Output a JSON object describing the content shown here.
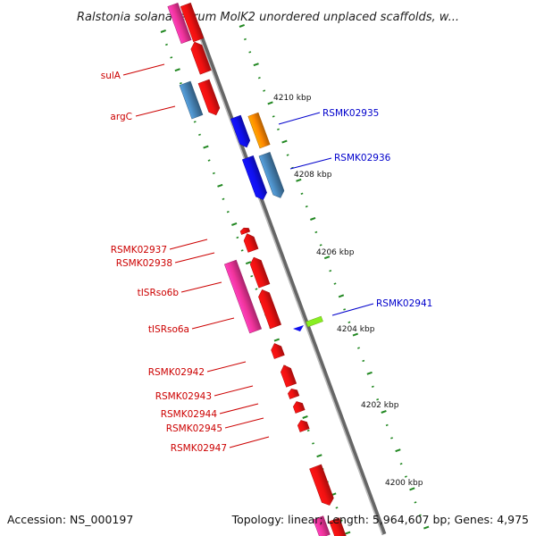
{
  "header": {
    "title": "Ralstonia solanacearum MolK2 unordered unplaced scaffolds, w..."
  },
  "footer": {
    "accession": "Accession: NS_000197",
    "summary": "Topology: linear; Length: 5,964,607 bp; Genes: 4,975"
  },
  "scale_labels": [
    "4210 kbp",
    "4208 kbp",
    "4206 kbp",
    "4204 kbp",
    "4202 kbp",
    "4200 kbp"
  ],
  "gene_labels_left": [
    "sulA",
    "argC",
    "RSMK02937",
    "RSMK02938",
    "tISRso6b",
    "tISRso6a",
    "RSMK02942",
    "RSMK02943",
    "RSMK02944",
    "RSMK02945",
    "RSMK02947"
  ],
  "gene_labels_right": [
    "RSMK02935",
    "RSMK02936",
    "RSMK02941"
  ],
  "colors": {
    "red": "#ee1111",
    "pink": "#ee3399",
    "steelblue": "#4682b4",
    "blue": "#1010ee",
    "orange": "#ff8800",
    "lime": "#88ee22",
    "left_label": "#cc0000",
    "right_label": "#0000cc",
    "tick_green": "#228822",
    "backbone": "#888888"
  }
}
